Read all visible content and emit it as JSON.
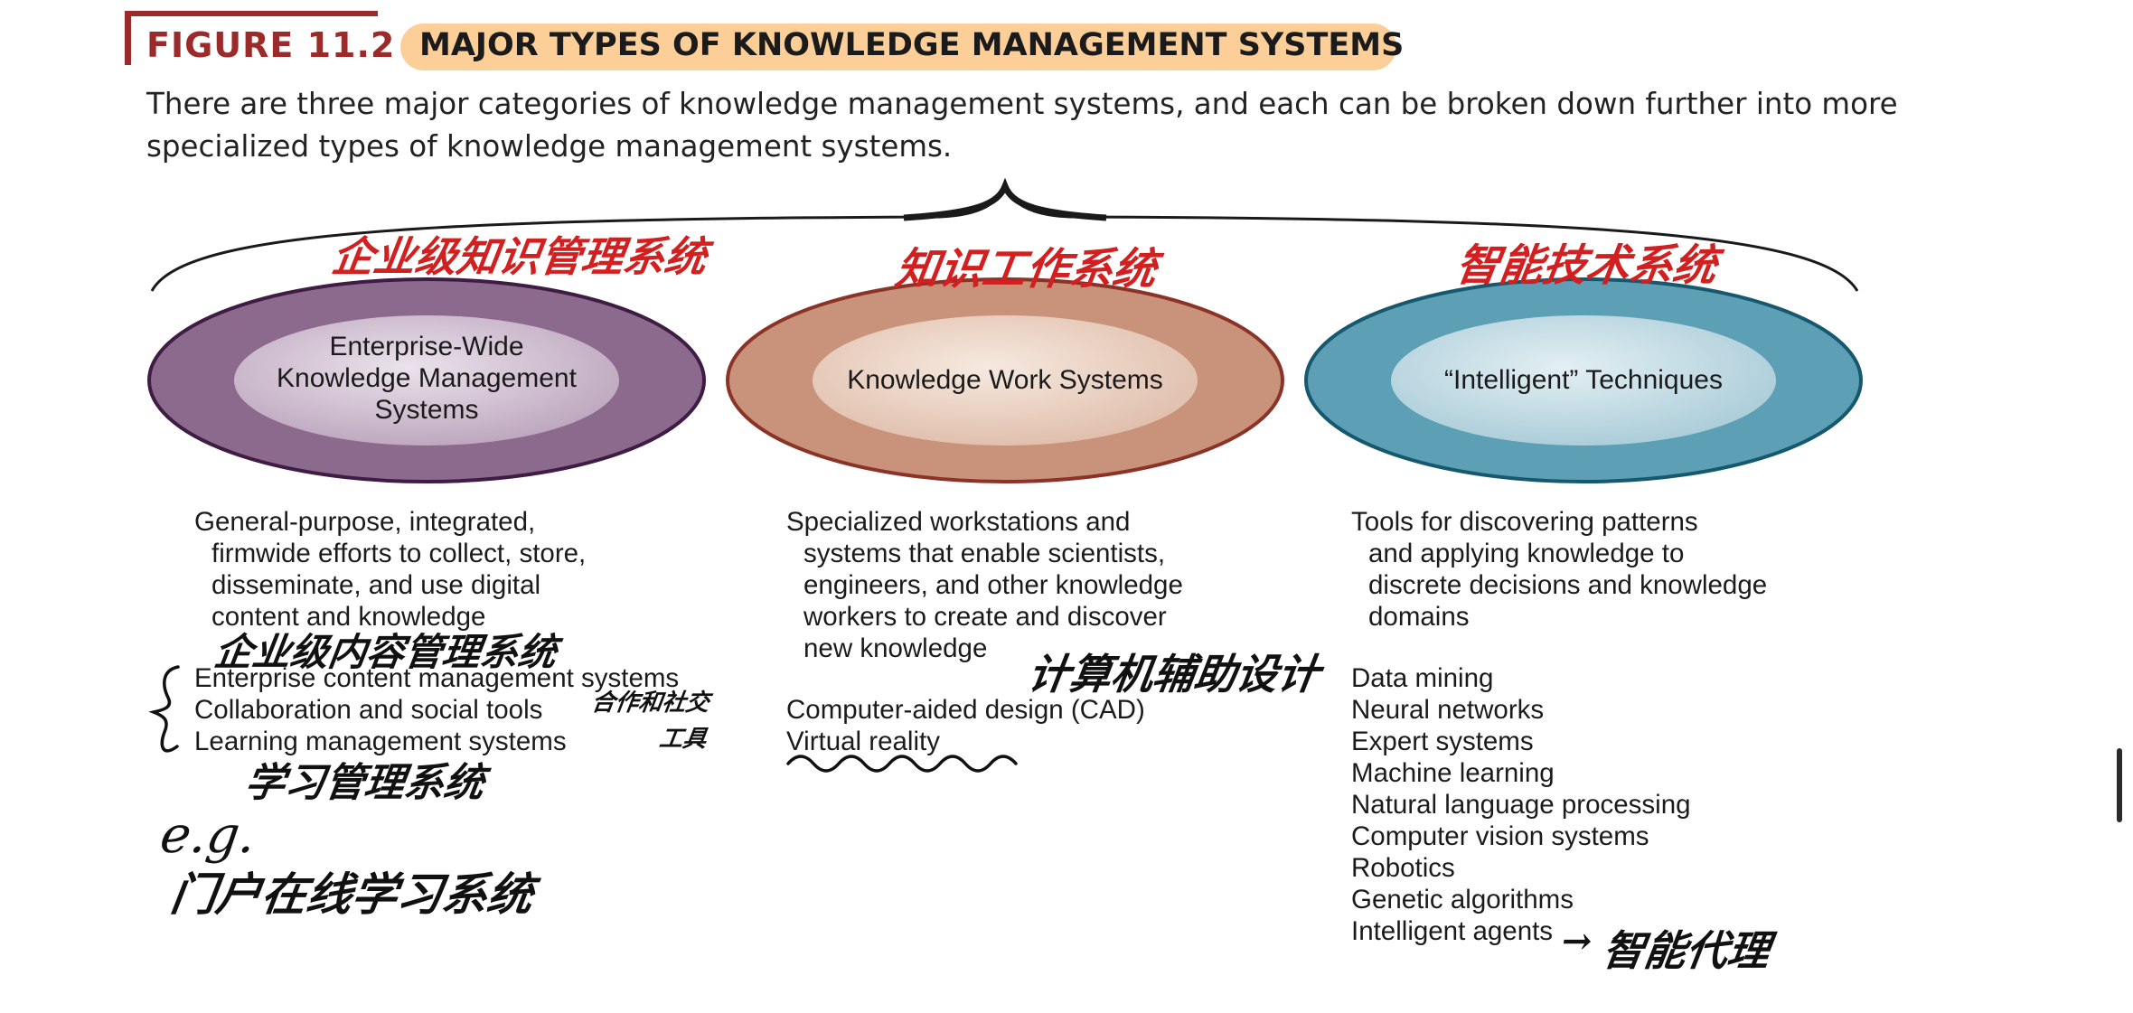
{
  "figure": {
    "label": "FIGURE 11.2",
    "title": "MAJOR TYPES OF KNOWLEDGE MANAGEMENT SYSTEMS",
    "caption": "There are three major categories of knowledge management systems, and each can be broken down further into more specialized types of knowledge management systems."
  },
  "colors": {
    "accent_red": "#9b2b2b",
    "title_pill": "#fccf99",
    "enterprise": "#8a6a8c",
    "knowledge_work": "#c8927a",
    "intelligent": "#5e9fb4",
    "annotation_red": "#d21f1f"
  },
  "categories": [
    {
      "name": "Enterprise-Wide Knowledge Management Systems",
      "name_lines": [
        "Enterprise-Wide",
        "Knowledge Management",
        "Systems"
      ],
      "description_lines": [
        "General-purpose, integrated,",
        "firmwide efforts to collect, store,",
        "disseminate, and use digital",
        "content and knowledge"
      ],
      "items": [
        "Enterprise content management systems",
        "Collaboration and social tools",
        "Learning management systems"
      ]
    },
    {
      "name": "Knowledge Work Systems",
      "name_lines": [
        "Knowledge Work Systems"
      ],
      "description_lines": [
        "Specialized workstations and",
        "systems that enable scientists,",
        "engineers, and other knowledge",
        "workers to create and discover",
        "new knowledge"
      ],
      "items": [
        "Computer-aided design (CAD)",
        "Virtual reality"
      ]
    },
    {
      "name": "“Intelligent” Techniques",
      "name_lines": [
        "“Intelligent” Techniques"
      ],
      "description_lines": [
        "Tools for discovering patterns",
        "and applying knowledge to",
        "discrete decisions and knowledge",
        "domains"
      ],
      "items": [
        "Data mining",
        "Neural networks",
        "Expert systems",
        "Machine learning",
        "Natural language processing",
        "Computer vision systems",
        "Robotics",
        "Genetic algorithms",
        "Intelligent agents"
      ]
    }
  ],
  "annotations": {
    "enterprise_heading": "企业级知识管理系统",
    "knowledge_work_heading": "知识工作系统",
    "intelligent_heading": "智能技术系统",
    "ecm_note": "企业级内容管理系统",
    "collab_note_1": "合作和社交",
    "collab_note_2": "工具",
    "lms_note": "学习管理系统",
    "eg": "e.g.",
    "example": "门户在线学习系统",
    "cad_note": "计算机辅助设计",
    "agents_note": "智能代理",
    "agents_arrow": "→"
  }
}
